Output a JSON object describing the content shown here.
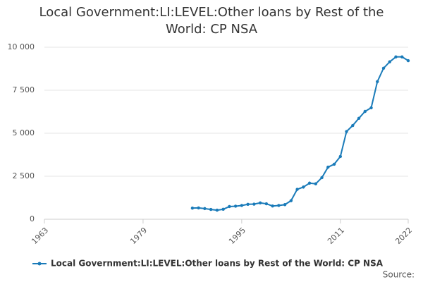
{
  "chart_data": {
    "type": "line",
    "title": "Local Government:LI:LEVEL:Other loans by Rest of the World: CP NSA",
    "source": "Source:",
    "x": [
      1987,
      1988,
      1989,
      1990,
      1991,
      1992,
      1993,
      1994,
      1995,
      1996,
      1997,
      1998,
      1999,
      2000,
      2001,
      2002,
      2003,
      2004,
      2005,
      2006,
      2007,
      2008,
      2009,
      2010,
      2011,
      2012,
      2013,
      2014,
      2015,
      2016,
      2017,
      2018,
      2019,
      2020,
      2021,
      2022
    ],
    "series": [
      {
        "name": "Local Government:LI:LEVEL:Other loans by Rest of the World: CP NSA",
        "color": "#1a7bb9",
        "values": [
          650,
          660,
          620,
          570,
          530,
          580,
          740,
          760,
          800,
          870,
          880,
          950,
          900,
          770,
          800,
          850,
          1080,
          1740,
          1870,
          2100,
          2060,
          2420,
          3030,
          3200,
          3650,
          5100,
          5450,
          5870,
          6270,
          6480,
          8000,
          8780,
          9150,
          9440,
          9440,
          9220
        ]
      }
    ],
    "xlim": [
      1963,
      2022
    ],
    "xticks": [
      1963,
      1979,
      1995,
      2011,
      2022
    ],
    "ylim": [
      0,
      10000
    ],
    "yticks": [
      0,
      {
        "value": 2500,
        "label": "2 500"
      },
      {
        "value": 5000,
        "label": "5 000"
      },
      {
        "value": 7500,
        "label": "7 500"
      },
      {
        "value": 10000,
        "label": "10 000"
      }
    ],
    "grid": true
  }
}
